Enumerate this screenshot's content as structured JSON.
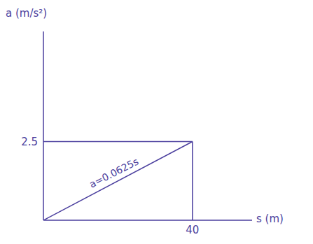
{
  "chart_data": {
    "type": "line",
    "x_label": "s (m)",
    "y_label": "a (m/s²)",
    "x": [
      0,
      40
    ],
    "values": [
      0,
      2.5
    ],
    "annotation": "a=0.0625s",
    "color": "#4b3f9e",
    "xlim": [
      0,
      56
    ],
    "ylim": [
      0,
      6
    ],
    "xticks": [
      40
    ],
    "yticks": [
      2.5
    ],
    "grid": false
  }
}
